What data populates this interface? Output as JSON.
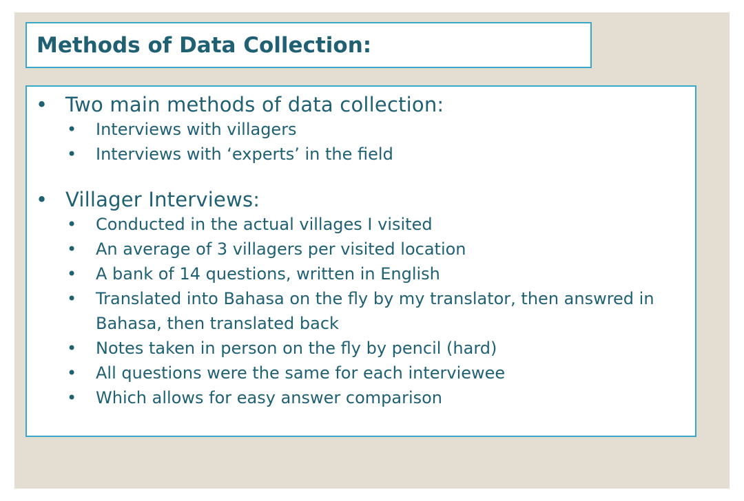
{
  "slide": {
    "title": "Methods of Data Collection:",
    "sections": [
      {
        "heading": "Two main methods of data collection:",
        "points": [
          "Interviews with villagers",
          "Interviews with ‘experts’ in the field"
        ]
      },
      {
        "heading": "Villager Interviews:",
        "points": [
          "Conducted in the actual villages I visited",
          "An average of 3 villagers per visited location",
          "A bank of 14 questions, written in English",
          "Translated into Bahasa on the fly by my translator, then answred in Bahasa, then translated back",
          "Notes taken in person on the fly by pencil (hard)",
          "All questions were the same for each interviewee",
          "Which allows for easy answer comparison"
        ]
      }
    ],
    "bullet_glyph": "•"
  }
}
